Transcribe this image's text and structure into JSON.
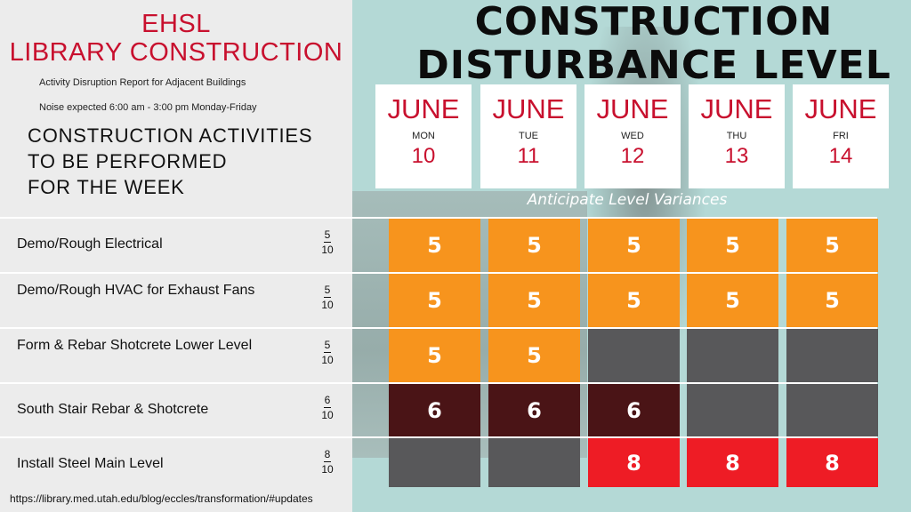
{
  "header": {
    "org_line1": "EHSL",
    "org_line2": "LIBRARY CONSTRUCTION",
    "subtitle": "Activity Disruption Report for Adjacent Buildings",
    "noise_note": "Noise expected 6:00 am - 3:00 pm Monday-Friday",
    "activities_line1": "CONSTRUCTION ACTIVITIES",
    "activities_line2": "TO BE PERFORMED",
    "activities_line3": "FOR THE WEEK",
    "main_title_line1": "CONSTRUCTION",
    "main_title_line2": "DISTURBANCE LEVEL"
  },
  "days": [
    {
      "month": "JUNE",
      "weekday": "MON",
      "date": "10"
    },
    {
      "month": "JUNE",
      "weekday": "TUE",
      "date": "11"
    },
    {
      "month": "JUNE",
      "weekday": "WED",
      "date": "12"
    },
    {
      "month": "JUNE",
      "weekday": "THU",
      "date": "13"
    },
    {
      "month": "JUNE",
      "weekday": "FRI",
      "date": "14"
    }
  ],
  "variance_note": "Anticipate Level Variances",
  "colors": {
    "orange": "#f7941d",
    "gray": "#58585a",
    "dark_red": "#4a1416",
    "red": "#ee1c25",
    "title_red": "#c8102e"
  },
  "activities": [
    {
      "label": "Demo/Rough Electrical",
      "level_num": "5",
      "level_den": "10",
      "cells": [
        {
          "value": "5",
          "color": "orange"
        },
        {
          "value": "5",
          "color": "orange"
        },
        {
          "value": "5",
          "color": "orange"
        },
        {
          "value": "5",
          "color": "orange"
        },
        {
          "value": "5",
          "color": "orange"
        }
      ]
    },
    {
      "label": "Demo/Rough HVAC for Exhaust Fans",
      "level_num": "5",
      "level_den": "10",
      "cells": [
        {
          "value": "5",
          "color": "orange"
        },
        {
          "value": "5",
          "color": "orange"
        },
        {
          "value": "5",
          "color": "orange"
        },
        {
          "value": "5",
          "color": "orange"
        },
        {
          "value": "5",
          "color": "orange"
        }
      ]
    },
    {
      "label": "Form & Rebar Shotcrete Lower Level",
      "level_num": "5",
      "level_den": "10",
      "cells": [
        {
          "value": "5",
          "color": "orange"
        },
        {
          "value": "5",
          "color": "orange"
        },
        {
          "value": "",
          "color": "gray"
        },
        {
          "value": "",
          "color": "gray"
        },
        {
          "value": "",
          "color": "gray"
        }
      ]
    },
    {
      "label": "South Stair Rebar & Shotcrete",
      "level_num": "6",
      "level_den": "10",
      "cells": [
        {
          "value": "6",
          "color": "dark_red"
        },
        {
          "value": "6",
          "color": "dark_red"
        },
        {
          "value": "6",
          "color": "dark_red"
        },
        {
          "value": "",
          "color": "gray"
        },
        {
          "value": "",
          "color": "gray"
        }
      ]
    },
    {
      "label": "Install Steel Main Level",
      "level_num": "8",
      "level_den": "10",
      "cells": [
        {
          "value": "",
          "color": "gray"
        },
        {
          "value": "",
          "color": "gray"
        },
        {
          "value": "8",
          "color": "red"
        },
        {
          "value": "8",
          "color": "red"
        },
        {
          "value": "8",
          "color": "red"
        }
      ]
    }
  ],
  "footer_url": "https://library.med.utah.edu/blog/eccles/transformation/#updates"
}
